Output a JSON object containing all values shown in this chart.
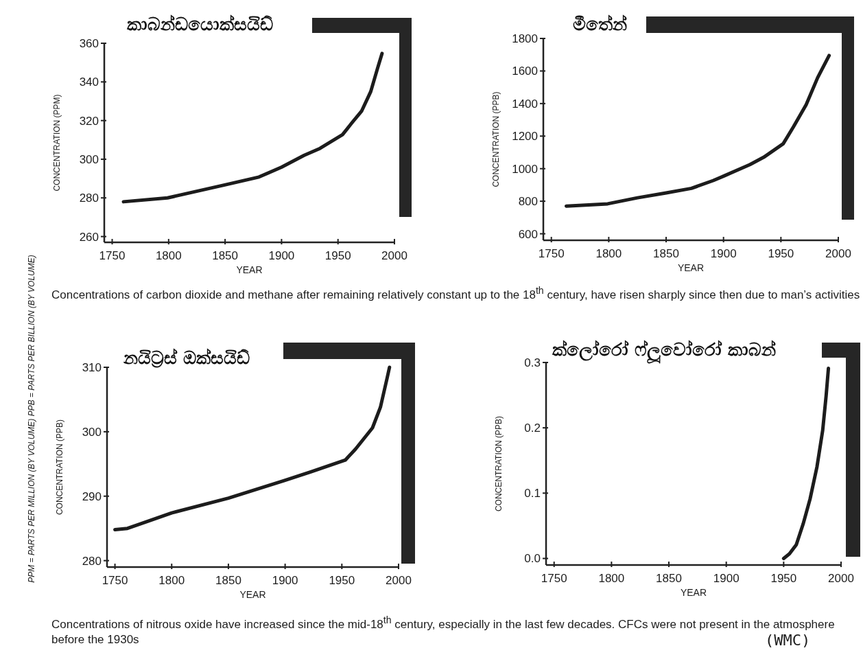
{
  "chart_data": [
    {
      "type": "line",
      "title": "කාබන්ඩයොක්සයිඩ්",
      "xlabel": "YEAR",
      "ylabel": "CONCENTRATION (PPM)",
      "color": "#1c1c1c",
      "xlim": [
        1743,
        2000
      ],
      "xticks": [
        1750,
        1800,
        1850,
        1900,
        1950,
        2000
      ],
      "ylim": [
        257,
        360
      ],
      "yticks": [
        260,
        280,
        300,
        320,
        340,
        360
      ],
      "x": [
        1760,
        1799,
        1849,
        1880,
        1900,
        1920,
        1934,
        1954,
        1962,
        1971,
        1979,
        1985,
        1989
      ],
      "values": [
        278,
        280,
        286.6,
        290.8,
        295.9,
        302,
        305.6,
        312.7,
        318.6,
        325,
        335,
        347,
        354.7
      ],
      "annotations": [
        "Concentrations of carbon dioxide and methane after remaining relatively constant up to the 18$^{th}$ century, have risen sharply since then due to man’s activities"
      ]
    },
    {
      "type": "line",
      "title": "මීතේන්",
      "xlabel": "YEAR",
      "ylabel": "CONCENTRATION (PPB)",
      "color": "#1c1c1c",
      "xlim": [
        1743,
        2000
      ],
      "xticks": [
        1750,
        1800,
        1850,
        1900,
        1950,
        2000
      ],
      "ylim": [
        560,
        1800
      ],
      "yticks": [
        600,
        800,
        1000,
        1200,
        1400,
        1600,
        1800
      ],
      "x": [
        1763,
        1799,
        1825,
        1850,
        1872,
        1891,
        1901,
        1923,
        1935,
        1952,
        1961,
        1972,
        1982,
        1992
      ],
      "values": [
        770,
        784,
        821,
        851,
        879,
        927,
        957,
        1025,
        1070,
        1153,
        1258,
        1393,
        1559,
        1695
      ]
    },
    {
      "type": "line",
      "title": "නයිට්‍රස් ඔක්සයිඩ්",
      "xlabel": "YEAR",
      "ylabel": "CONCENTRATION (PPB)",
      "color": "#1c1c1c",
      "xlim": [
        1743,
        2000
      ],
      "xticks": [
        1750,
        1800,
        1850,
        1900,
        1950,
        2000
      ],
      "ylim": [
        279,
        310
      ],
      "yticks": [
        280,
        290,
        300,
        310
      ],
      "x": [
        1750,
        1761,
        1800,
        1850,
        1899,
        1923,
        1953,
        1962,
        1977,
        1984,
        1990,
        1992
      ],
      "values": [
        284.8,
        285,
        287.4,
        289.7,
        292.4,
        293.8,
        295.6,
        297.3,
        300.6,
        303.8,
        308.4,
        310
      ],
      "annotations": [
        "PPM = PARTS PER MILLION (BY VOLUME)    PPB = PARTS PER BILLION (BY VOLUME)",
        "Concentrations of nitrous oxide have increased since the mid-18$^{th}$ century, especially in the last few decades. CFCs were not present in the atmosphere before the 1930s"
      ]
    },
    {
      "type": "line",
      "title": "ක්ලෝරෝ ෆ්ලූවෝරෝ කාබන්",
      "xlabel": "YEAR",
      "ylabel": "CONCENTRATION (PPB)",
      "color": "#1c1c1c",
      "xlim": [
        1743,
        2000
      ],
      "xticks": [
        1750,
        1800,
        1850,
        1900,
        1950,
        2000
      ],
      "ylim": [
        -0.01,
        0.3
      ],
      "yticks": [
        {
          "value": 0,
          "label": "0.0"
        },
        0.1,
        0.2,
        0.3
      ],
      "x": [
        1950,
        1955,
        1961,
        1967,
        1973,
        1979,
        1984,
        1987,
        1989
      ],
      "values": [
        0,
        0.007,
        0.021,
        0.053,
        0.091,
        0.14,
        0.196,
        0.249,
        0.291
      ],
      "annotations": [
        "(WMC)"
      ]
    }
  ]
}
